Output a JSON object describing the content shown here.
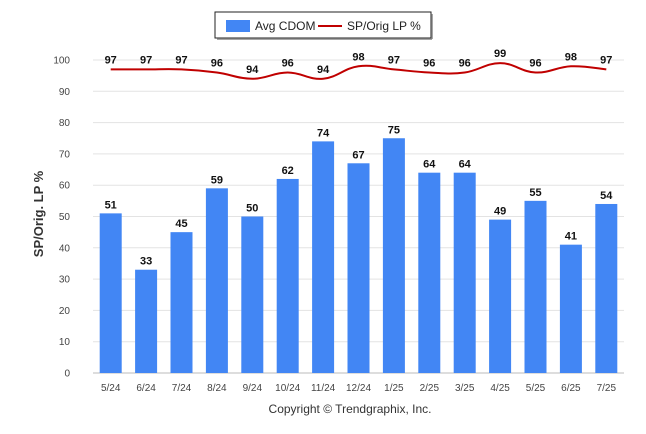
{
  "chart_data": {
    "type": "bar",
    "categories": [
      "5/24",
      "6/24",
      "7/24",
      "8/24",
      "9/24",
      "10/24",
      "11/24",
      "12/24",
      "1/25",
      "2/25",
      "3/25",
      "4/25",
      "5/25",
      "6/25",
      "7/25"
    ],
    "series": [
      {
        "name": "Avg CDOM",
        "type": "bar",
        "color": "#4286f4",
        "values": [
          51,
          33,
          45,
          59,
          50,
          62,
          74,
          67,
          75,
          64,
          64,
          49,
          55,
          41,
          54
        ]
      },
      {
        "name": "SP/Orig LP %",
        "type": "line",
        "color": "#c00000",
        "values": [
          97,
          97,
          97,
          96,
          94,
          96,
          94,
          98,
          97,
          96,
          96,
          99,
          96,
          98,
          97
        ]
      }
    ],
    "ylabel": "SP/Orig. LP %",
    "xlabel": "",
    "ylim": [
      0,
      100
    ],
    "yticks": [
      0,
      10,
      20,
      30,
      40,
      50,
      60,
      70,
      80,
      90,
      100
    ],
    "grid": true,
    "legend_position": "top-center"
  },
  "footer": {
    "copyright": "Copyright © Trendgraphix, Inc."
  }
}
